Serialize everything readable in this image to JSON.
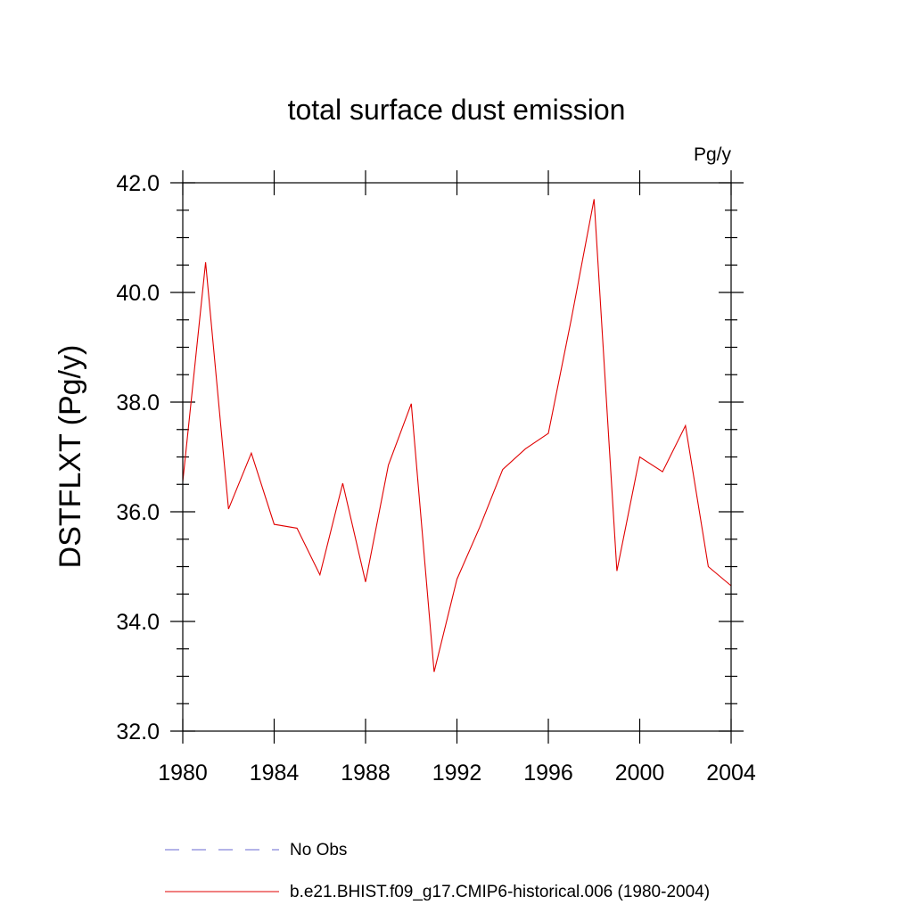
{
  "chart_data": {
    "type": "line",
    "title": "total surface dust emission",
    "units_label": "Pg/y",
    "ylabel": "DSTFLXT  (Pg/y)",
    "xlabel": "",
    "xlim": [
      1980,
      2004
    ],
    "ylim": [
      32.0,
      42.0
    ],
    "x_ticks": [
      1980,
      1984,
      1988,
      1992,
      1996,
      2000,
      2004
    ],
    "x_tick_labels": [
      "1980",
      "1984",
      "1988",
      "1992",
      "1996",
      "2000",
      "2004"
    ],
    "y_ticks": [
      32.0,
      34.0,
      36.0,
      38.0,
      40.0,
      42.0
    ],
    "y_tick_labels": [
      "32.0",
      "34.0",
      "36.0",
      "38.0",
      "40.0",
      "42.0"
    ],
    "grid": false,
    "legend_position": "bottom",
    "legend": [
      {
        "label": "No Obs",
        "color": "#6a6ad0",
        "style": "dashed"
      },
      {
        "label": "b.e21.BHIST.f09_g17.CMIP6-historical.006 (1980-2004)",
        "color": "#e00000",
        "style": "solid"
      }
    ],
    "series": [
      {
        "name": "b.e21.BHIST.f09_g17.CMIP6-historical.006 (1980-2004)",
        "color": "#e00000",
        "x": [
          1980,
          1981,
          1982,
          1983,
          1984,
          1985,
          1986,
          1987,
          1988,
          1989,
          1990,
          1991,
          1992,
          1993,
          1994,
          1995,
          1996,
          1997,
          1998,
          1999,
          2000,
          2001,
          2002,
          2003,
          2004
        ],
        "y": [
          36.55,
          40.55,
          36.05,
          37.07,
          35.77,
          35.7,
          34.85,
          36.52,
          34.72,
          36.85,
          37.97,
          33.08,
          34.77,
          35.72,
          36.77,
          37.15,
          37.43,
          39.5,
          41.7,
          34.92,
          37.0,
          36.73,
          37.57,
          35.0,
          34.65
        ]
      }
    ]
  }
}
